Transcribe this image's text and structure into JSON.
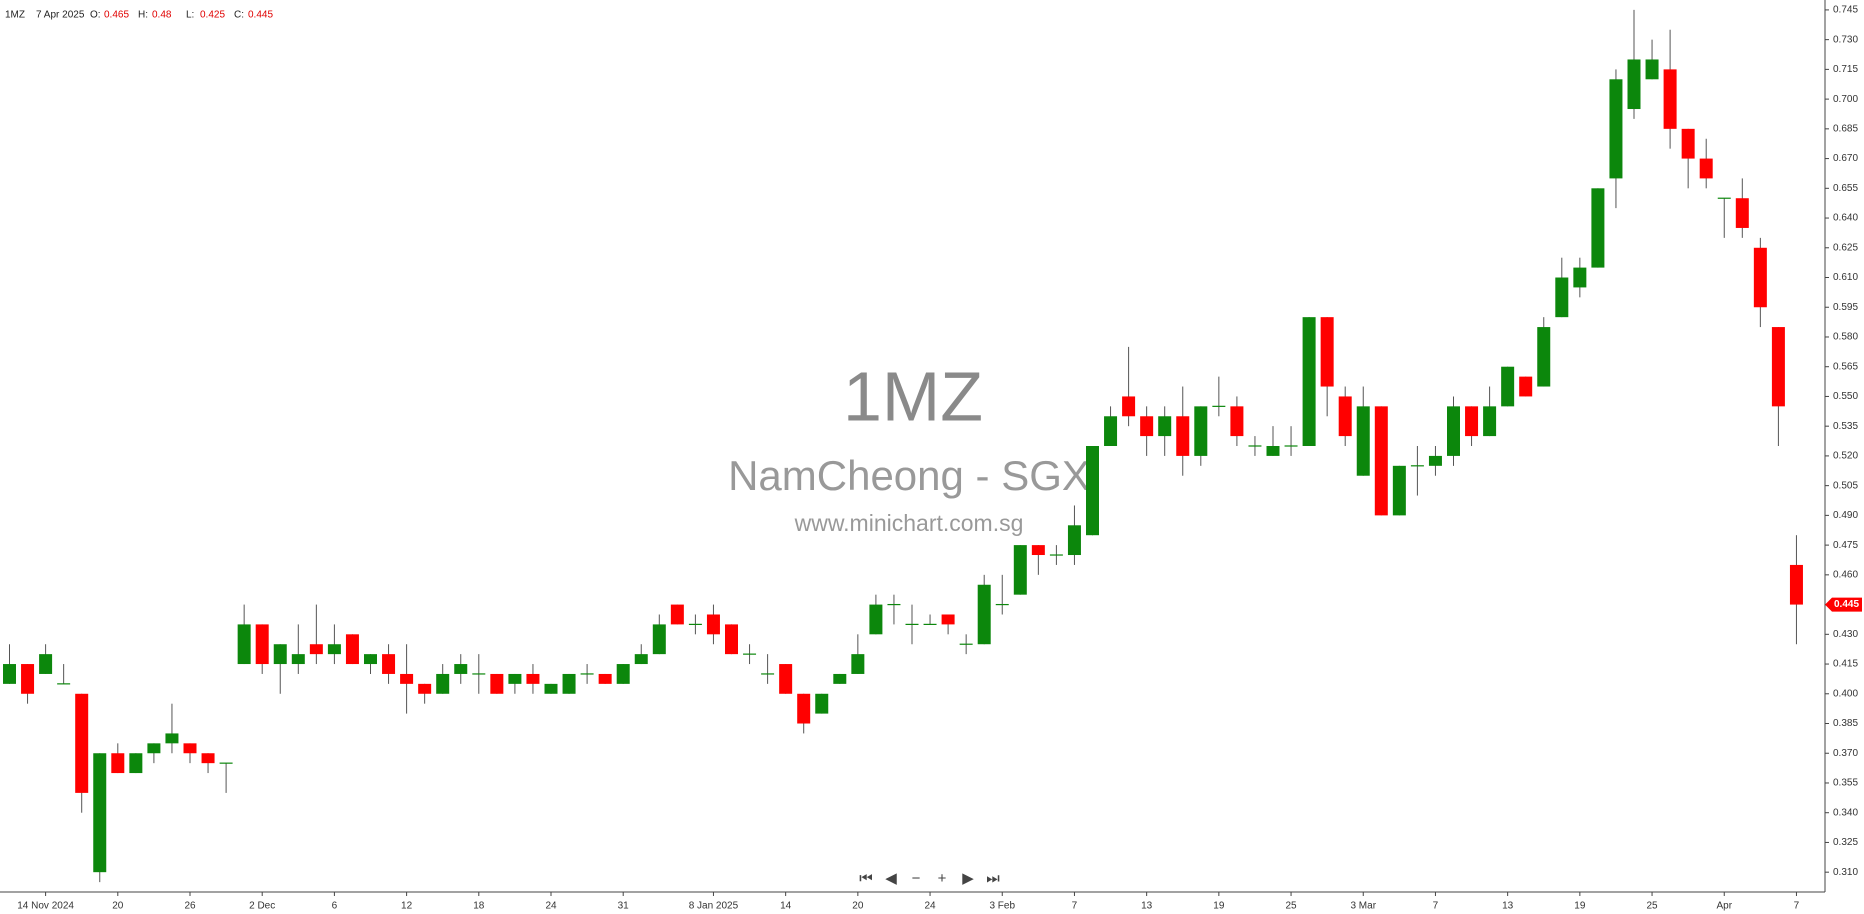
{
  "header": {
    "symbol": "1MZ",
    "date": "7 Apr 2025",
    "fields": [
      {
        "label": "O:",
        "value": 0.465
      },
      {
        "label": "H:",
        "value": 0.48
      },
      {
        "label": "L:",
        "value": 0.425
      },
      {
        "label": "C:",
        "value": 0.445
      }
    ]
  },
  "watermark": {
    "code": "1MZ",
    "name": "NamCheong - SGX",
    "site": "www.minichart.com.sg"
  },
  "chart_data": {
    "type": "candlestick",
    "categories": [
      null,
      null,
      "14 Nov 2024",
      null,
      null,
      null,
      "20",
      null,
      null,
      null,
      "26",
      null,
      null,
      null,
      "2 Dec",
      null,
      null,
      null,
      "6",
      null,
      null,
      null,
      "12",
      null,
      null,
      null,
      "18",
      null,
      null,
      null,
      "24",
      null,
      null,
      null,
      "31",
      null,
      null,
      null,
      null,
      "8 Jan 2025",
      null,
      null,
      null,
      "14",
      null,
      null,
      null,
      "20",
      null,
      null,
      null,
      "24",
      null,
      null,
      null,
      "3 Feb",
      null,
      null,
      null,
      "7",
      null,
      null,
      null,
      "13",
      null,
      null,
      null,
      "19",
      null,
      null,
      null,
      "25",
      null,
      null,
      null,
      "3 Mar",
      null,
      null,
      null,
      "7",
      null,
      null,
      null,
      "13",
      null,
      null,
      null,
      "19",
      null,
      null,
      null,
      "25",
      null,
      null,
      null,
      "Apr",
      null,
      null,
      null,
      "7"
    ],
    "open": [
      0.405,
      0.415,
      0.41,
      0.405,
      0.4,
      0.31,
      0.37,
      0.36,
      0.37,
      0.375,
      0.375,
      0.37,
      0.365,
      0.415,
      0.435,
      0.415,
      0.415,
      0.425,
      0.42,
      0.43,
      0.415,
      0.42,
      0.41,
      0.405,
      0.4,
      0.41,
      0.41,
      0.41,
      0.405,
      0.41,
      0.4,
      0.4,
      0.41,
      0.41,
      0.405,
      0.415,
      0.42,
      0.445,
      0.435,
      0.44,
      0.435,
      0.42,
      0.41,
      0.415,
      0.4,
      0.39,
      0.405,
      0.41,
      0.43,
      0.445,
      0.435,
      0.435,
      0.44,
      0.425,
      0.425,
      0.445,
      0.45,
      0.475,
      0.47,
      0.47,
      0.48,
      0.525,
      0.55,
      0.54,
      0.53,
      0.54,
      0.52,
      0.545,
      0.545,
      0.525,
      0.52,
      0.525,
      0.525,
      0.59,
      0.55,
      0.51,
      0.545,
      0.49,
      0.515,
      0.515,
      0.52,
      0.545,
      0.53,
      0.545,
      0.56,
      0.555,
      0.59,
      0.605,
      0.615,
      0.66,
      0.695,
      0.71,
      0.715,
      0.685,
      0.67,
      0.65,
      0.65,
      0.625,
      0.585,
      0.465
    ],
    "high": [
      0.425,
      0.415,
      0.425,
      0.415,
      0.4,
      0.37,
      0.375,
      0.37,
      0.375,
      0.395,
      0.375,
      0.37,
      0.365,
      0.445,
      0.435,
      0.425,
      0.435,
      0.445,
      0.435,
      0.43,
      0.42,
      0.425,
      0.425,
      0.405,
      0.415,
      0.42,
      0.42,
      0.41,
      0.41,
      0.415,
      0.405,
      0.41,
      0.415,
      0.41,
      0.415,
      0.425,
      0.44,
      0.445,
      0.44,
      0.445,
      0.435,
      0.425,
      0.42,
      0.415,
      0.4,
      0.4,
      0.41,
      0.43,
      0.45,
      0.45,
      0.445,
      0.44,
      0.44,
      0.43,
      0.46,
      0.46,
      0.475,
      0.475,
      0.475,
      0.495,
      0.525,
      0.545,
      0.575,
      0.545,
      0.545,
      0.555,
      0.545,
      0.56,
      0.55,
      0.53,
      0.535,
      0.535,
      0.59,
      0.59,
      0.555,
      0.555,
      0.545,
      0.515,
      0.525,
      0.525,
      0.55,
      0.545,
      0.555,
      0.565,
      0.56,
      0.59,
      0.62,
      0.62,
      0.655,
      0.715,
      0.745,
      0.73,
      0.735,
      0.685,
      0.68,
      0.65,
      0.66,
      0.63,
      0.585,
      0.48
    ],
    "low": [
      0.405,
      0.395,
      0.41,
      0.405,
      0.34,
      0.305,
      0.36,
      0.36,
      0.365,
      0.37,
      0.365,
      0.36,
      0.35,
      0.415,
      0.41,
      0.4,
      0.41,
      0.415,
      0.415,
      0.415,
      0.41,
      0.405,
      0.39,
      0.395,
      0.4,
      0.405,
      0.4,
      0.4,
      0.4,
      0.4,
      0.4,
      0.4,
      0.405,
      0.405,
      0.405,
      0.415,
      0.42,
      0.435,
      0.43,
      0.425,
      0.42,
      0.415,
      0.405,
      0.4,
      0.38,
      0.39,
      0.405,
      0.41,
      0.43,
      0.435,
      0.425,
      0.435,
      0.43,
      0.42,
      0.425,
      0.44,
      0.45,
      0.46,
      0.465,
      0.465,
      0.48,
      0.525,
      0.535,
      0.52,
      0.52,
      0.51,
      0.515,
      0.54,
      0.525,
      0.52,
      0.52,
      0.52,
      0.525,
      0.54,
      0.525,
      0.51,
      0.49,
      0.49,
      0.5,
      0.51,
      0.515,
      0.525,
      0.53,
      0.545,
      0.55,
      0.555,
      0.59,
      0.6,
      0.615,
      0.645,
      0.69,
      0.71,
      0.675,
      0.655,
      0.655,
      0.63,
      0.63,
      0.585,
      0.525,
      0.425
    ],
    "close": [
      0.415,
      0.4,
      0.42,
      0.405,
      0.35,
      0.37,
      0.36,
      0.37,
      0.375,
      0.38,
      0.37,
      0.365,
      0.365,
      0.435,
      0.415,
      0.425,
      0.42,
      0.42,
      0.425,
      0.415,
      0.42,
      0.41,
      0.405,
      0.4,
      0.41,
      0.415,
      0.41,
      0.4,
      0.41,
      0.405,
      0.405,
      0.41,
      0.41,
      0.405,
      0.415,
      0.42,
      0.435,
      0.435,
      0.435,
      0.43,
      0.42,
      0.42,
      0.41,
      0.4,
      0.385,
      0.4,
      0.41,
      0.42,
      0.445,
      0.445,
      0.435,
      0.435,
      0.435,
      0.425,
      0.455,
      0.445,
      0.475,
      0.47,
      0.47,
      0.485,
      0.525,
      0.54,
      0.54,
      0.53,
      0.54,
      0.52,
      0.545,
      0.545,
      0.53,
      0.525,
      0.525,
      0.525,
      0.59,
      0.555,
      0.53,
      0.545,
      0.49,
      0.515,
      0.515,
      0.52,
      0.545,
      0.53,
      0.545,
      0.565,
      0.55,
      0.585,
      0.61,
      0.615,
      0.655,
      0.71,
      0.72,
      0.72,
      0.685,
      0.67,
      0.66,
      0.65,
      0.635,
      0.595,
      0.545,
      0.445
    ],
    "ylim": [
      0.3,
      0.75
    ],
    "yticks": [
      {
        "value": 0.31,
        "label": "0.310"
      },
      0.325,
      {
        "value": 0.34,
        "label": "0.340"
      },
      0.355,
      {
        "value": 0.37,
        "label": "0.370"
      },
      0.385,
      {
        "value": 0.4,
        "label": "0.400"
      },
      0.415,
      {
        "value": 0.43,
        "label": "0.430"
      },
      0.445,
      {
        "value": 0.46,
        "label": "0.460"
      },
      0.475,
      {
        "value": 0.49,
        "label": "0.490"
      },
      0.505,
      {
        "value": 0.52,
        "label": "0.520"
      },
      0.535,
      {
        "value": 0.55,
        "label": "0.550"
      },
      0.565,
      {
        "value": 0.58,
        "label": "0.580"
      },
      0.595,
      {
        "value": 0.61,
        "label": "0.610"
      },
      0.625,
      {
        "value": 0.64,
        "label": "0.640"
      },
      0.655,
      {
        "value": 0.67,
        "label": "0.670"
      },
      0.685,
      {
        "value": 0.7,
        "label": "0.700"
      },
      0.715,
      {
        "value": 0.73,
        "label": "0.730"
      },
      0.745
    ],
    "up_color": "#0c870c",
    "down_color": "#ff0000",
    "grid": false
  }
}
